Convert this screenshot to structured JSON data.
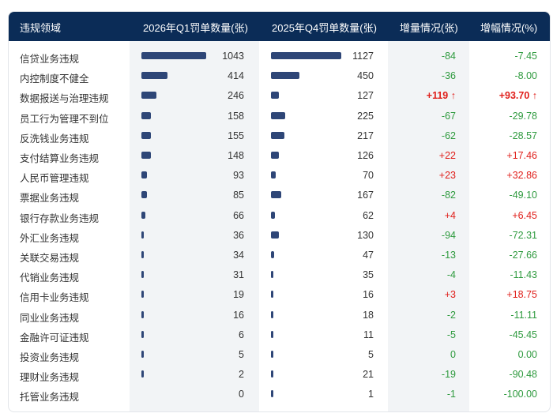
{
  "headers": [
    "违规领域",
    "2026年Q1罚单数量(张)",
    "2025年Q4罚单数量(张)",
    "增量情况(张)",
    "增幅情况(%)"
  ],
  "colors": {
    "header_bg": "#0b2c57",
    "bar": "#2e4677",
    "increase": "#e0201c",
    "decrease": "#2e9a3e"
  },
  "rows": [
    {
      "name": "信贷业务违规",
      "q1": 1043,
      "q4": 1127,
      "delta": "-84",
      "pct": "-7.45",
      "dir": "neg"
    },
    {
      "name": "内控制度不健全",
      "q1": 414,
      "q4": 450,
      "delta": "-36",
      "pct": "-8.00",
      "dir": "neg"
    },
    {
      "name": "数据报送与治理违规",
      "q1": 246,
      "q4": 127,
      "delta": "+119 ↑",
      "pct": "+93.70 ↑",
      "dir": "pos",
      "highlight": true
    },
    {
      "name": "员工行为管理不到位",
      "q1": 158,
      "q4": 225,
      "delta": "-67",
      "pct": "-29.78",
      "dir": "neg"
    },
    {
      "name": "反洗钱业务违规",
      "q1": 155,
      "q4": 217,
      "delta": "-62",
      "pct": "-28.57",
      "dir": "neg"
    },
    {
      "name": "支付结算业务违规",
      "q1": 148,
      "q4": 126,
      "delta": "+22",
      "pct": "+17.46",
      "dir": "pos"
    },
    {
      "name": "人民币管理违规",
      "q1": 93,
      "q4": 70,
      "delta": "+23",
      "pct": "+32.86",
      "dir": "pos"
    },
    {
      "name": "票据业务违规",
      "q1": 85,
      "q4": 167,
      "delta": "-82",
      "pct": "-49.10",
      "dir": "neg"
    },
    {
      "name": "银行存款业务违规",
      "q1": 66,
      "q4": 62,
      "delta": "+4",
      "pct": "+6.45",
      "dir": "pos"
    },
    {
      "name": "外汇业务违规",
      "q1": 36,
      "q4": 130,
      "delta": "-94",
      "pct": "-72.31",
      "dir": "neg"
    },
    {
      "name": "关联交易违规",
      "q1": 34,
      "q4": 47,
      "delta": "-13",
      "pct": "-27.66",
      "dir": "neg"
    },
    {
      "name": "代销业务违规",
      "q1": 31,
      "q4": 35,
      "delta": "-4",
      "pct": "-11.43",
      "dir": "neg"
    },
    {
      "name": "信用卡业务违规",
      "q1": 19,
      "q4": 16,
      "delta": "+3",
      "pct": "+18.75",
      "dir": "pos"
    },
    {
      "name": "同业业务违规",
      "q1": 16,
      "q4": 18,
      "delta": "-2",
      "pct": "-11.11",
      "dir": "neg"
    },
    {
      "name": "金融许可证违规",
      "q1": 6,
      "q4": 11,
      "delta": "-5",
      "pct": "-45.45",
      "dir": "neg"
    },
    {
      "name": "投资业务违规",
      "q1": 5,
      "q4": 5,
      "delta": "0",
      "pct": "0.00",
      "dir": "neg"
    },
    {
      "name": "理财业务违规",
      "q1": 2,
      "q4": 21,
      "delta": "-19",
      "pct": "-90.48",
      "dir": "neg"
    },
    {
      "name": "托管业务违规",
      "q1": 0,
      "q4": 1,
      "delta": "-1",
      "pct": "-100.00",
      "dir": "neg"
    }
  ]
}
